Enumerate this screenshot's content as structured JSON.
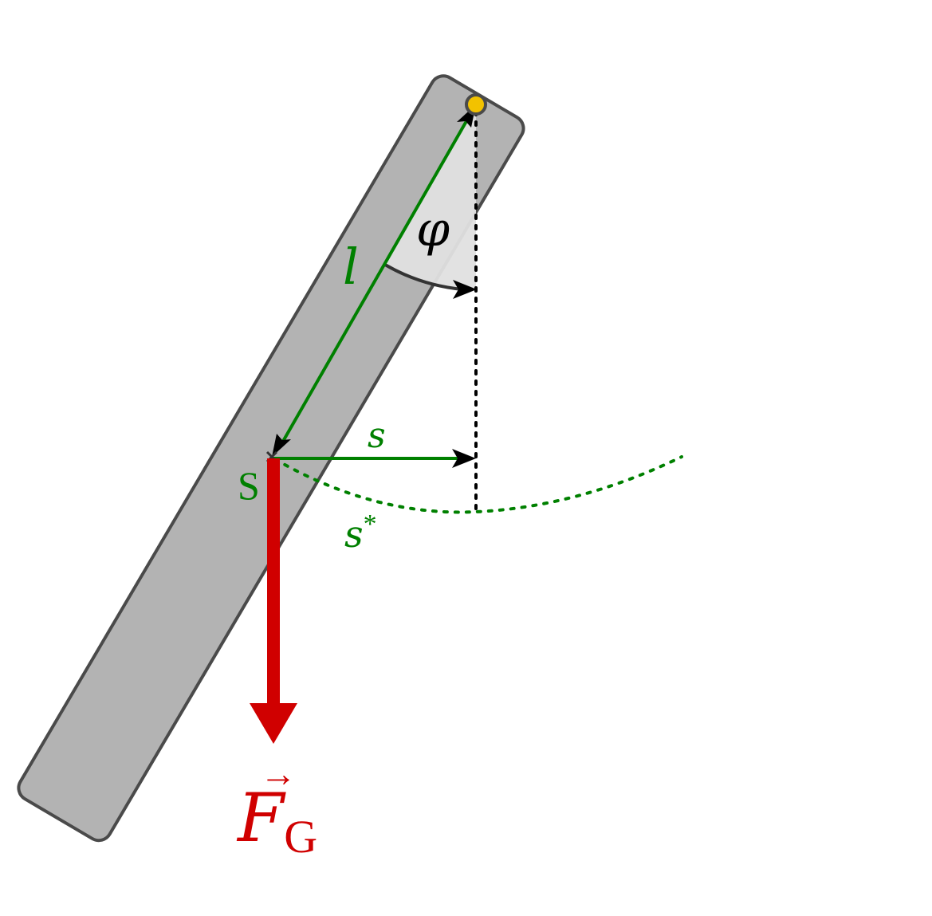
{
  "labels": {
    "length": "l",
    "angle": "φ",
    "horizontal_distance": "s",
    "arc_distance": "s",
    "arc_distance_superscript": "*",
    "center_of_mass": "S",
    "force_symbol": "F",
    "force_subscript": "G",
    "force_vector_arrow": "→"
  },
  "colors": {
    "rod_fill": "#b3b3b3",
    "rod_stroke": "#4a4a4a",
    "pivot_fill": "#f2c200",
    "green": "#008000",
    "red": "#d00000",
    "black": "#000000",
    "angle_fill": "#e0e0e0"
  },
  "icons": {
    "pivot": "pivot-point-circle",
    "center_marker": "cross-marker"
  }
}
